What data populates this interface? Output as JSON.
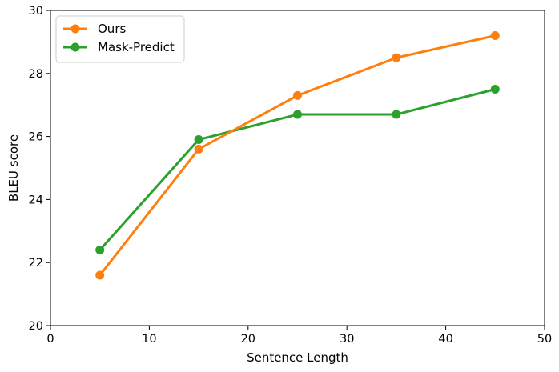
{
  "chart_data": {
    "type": "line",
    "title": "",
    "xlabel": "Sentence Length",
    "ylabel": "BLEU score",
    "xlim": [
      0,
      50
    ],
    "ylim": [
      20,
      30
    ],
    "xticks": [
      0,
      10,
      20,
      30,
      40,
      50
    ],
    "yticks": [
      20,
      22,
      24,
      26,
      28,
      30
    ],
    "xtick_labels": [
      "0",
      "10",
      "20",
      "30",
      "40",
      "50"
    ],
    "ytick_labels": [
      "20",
      "22",
      "24",
      "26",
      "28",
      "30"
    ],
    "grid": false,
    "legend_position": "top-left",
    "x": [
      5,
      15,
      25,
      35,
      45
    ],
    "series": [
      {
        "name": "Ours",
        "color": "#ff7f0e",
        "values": [
          21.6,
          25.6,
          27.3,
          28.5,
          29.2
        ]
      },
      {
        "name": "Mask-Predict",
        "color": "#2ca02c",
        "values": [
          22.4,
          25.9,
          26.7,
          26.7,
          27.5
        ]
      }
    ]
  }
}
